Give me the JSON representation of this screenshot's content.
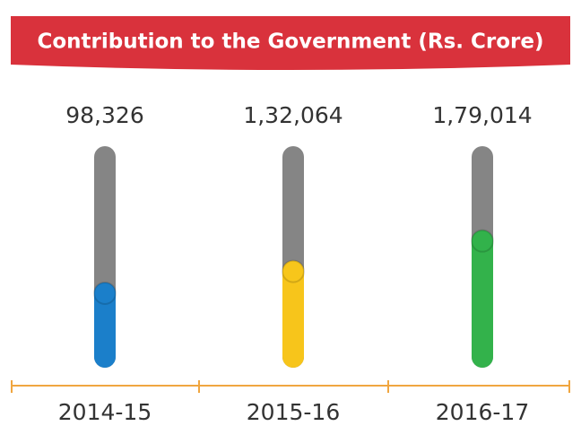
{
  "chart_data": {
    "type": "bar",
    "title": "Contribution to the Government (Rs. Crore)",
    "categories": [
      "2014-15",
      "2015-16",
      "2016-17"
    ],
    "values": [
      98326,
      132064,
      179014
    ],
    "value_labels": [
      "98,326",
      "1,32,064",
      "1,79,014"
    ],
    "colors": [
      "#1b7fca",
      "#f7c51b",
      "#33b24b"
    ],
    "track_color": "#858585"
  }
}
